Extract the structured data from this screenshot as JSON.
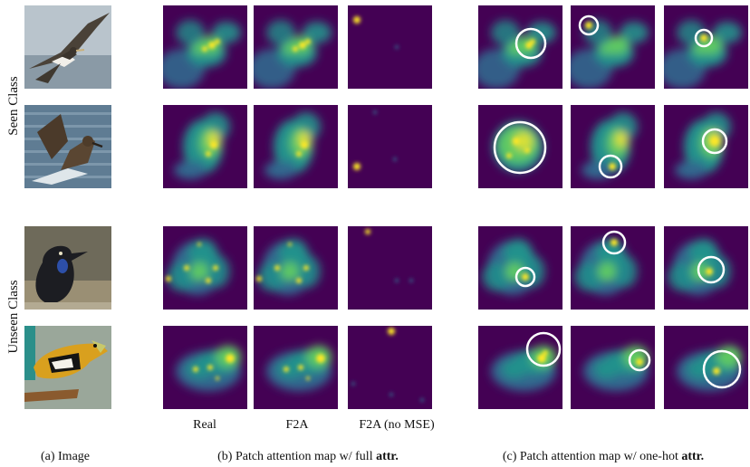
{
  "row_groups": [
    {
      "label": "Seen Class"
    },
    {
      "label": "Unseen Class"
    }
  ],
  "column_labels": {
    "real": "Real",
    "f2a": "F2A",
    "f2a_no_mse": "F2A (no MSE)"
  },
  "captions": {
    "a": "(a) Image",
    "b_prefix": "(b) Patch attention map w/ full ",
    "b_bold": "attr.",
    "c_prefix": "(c) Patch attention map w/ one-hot ",
    "c_bold": "attr."
  },
  "colors": {
    "background": "#440154",
    "mid": "#31688e",
    "teal": "#21918c",
    "green": "#5ec962",
    "peak": "#fde725",
    "circle": "#ffffff"
  }
}
